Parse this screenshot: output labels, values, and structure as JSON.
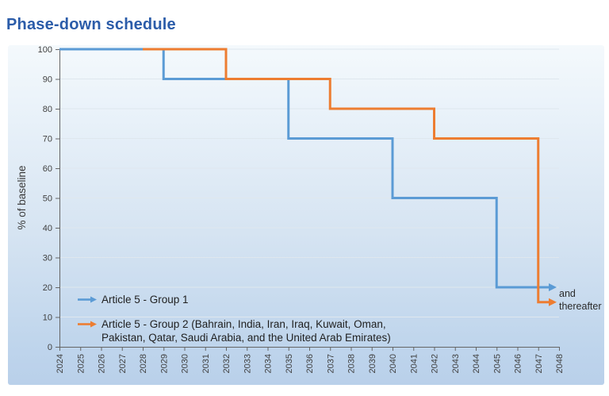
{
  "title": "Phase-down schedule",
  "chart_data": {
    "type": "line",
    "subtype": "step",
    "title": "Phase-down schedule",
    "xlabel": "",
    "ylabel": "% of baseline",
    "xlim": [
      2024,
      2048
    ],
    "ylim": [
      0,
      100
    ],
    "xticks": [
      2024,
      2025,
      2026,
      2027,
      2028,
      2029,
      2030,
      2031,
      2032,
      2033,
      2034,
      2035,
      2036,
      2037,
      2038,
      2039,
      2040,
      2041,
      2042,
      2043,
      2044,
      2045,
      2046,
      2047,
      2048
    ],
    "yticks": [
      0,
      10,
      20,
      30,
      40,
      50,
      60,
      70,
      80,
      90,
      100
    ],
    "grid": "horizontal",
    "legend_position": "inside-bottom-left",
    "series": [
      {
        "name": "Article 5 - Group 1",
        "color": "#5B9BD5",
        "steps": [
          [
            2024,
            100
          ],
          [
            2029,
            90
          ],
          [
            2035,
            70
          ],
          [
            2040,
            50
          ],
          [
            2045,
            20
          ]
        ],
        "arrow": true
      },
      {
        "name": "Article 5 - Group 2 (Bahrain, India, Iran, Iraq, Kuwait, Oman, Pakistan, Qatar, Saudi Arabia, and the United Arab Emirates)",
        "color": "#ED7D31",
        "steps": [
          [
            2028,
            100
          ],
          [
            2032,
            90
          ],
          [
            2037,
            80
          ],
          [
            2042,
            70
          ],
          [
            2047,
            15
          ]
        ],
        "arrow": true
      }
    ],
    "annotation": {
      "line1": "and",
      "line2": "thereafter"
    }
  },
  "legend": {
    "items": [
      {
        "color": "#5B9BD5",
        "icon": "blue-right-arrow",
        "lines": [
          "Article 5 - Group 1"
        ]
      },
      {
        "color": "#ED7D31",
        "icon": "orange-right-arrow",
        "lines": [
          "Article 5 - Group 2 (Bahrain, India, Iran, Iraq, Kuwait, Oman,",
          "Pakistan, Qatar, Saudi Arabia, and the United Arab Emirates)"
        ]
      }
    ]
  },
  "colors": {
    "title_text": "#2B5CA9",
    "axis_line": "#666666",
    "tick_text": "#404040",
    "gridline": "#DFE7EE",
    "panel_top": "#F4F9FC",
    "panel_bottom": "#B9D0EA",
    "series_blue": "#5B9BD5",
    "series_orange": "#ED7D31"
  }
}
